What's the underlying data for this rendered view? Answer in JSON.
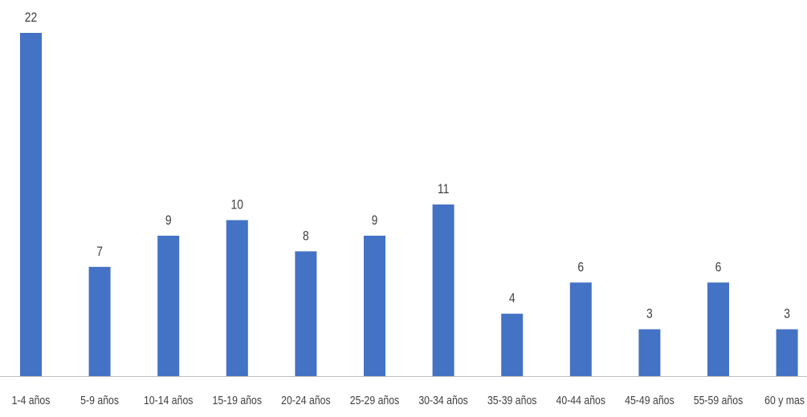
{
  "chart_data": {
    "type": "bar",
    "title": "",
    "xlabel": "",
    "ylabel": "",
    "categories": [
      "1-4 años",
      "5-9 años",
      "10-14 años",
      "15-19 años",
      "20-24 años",
      "25-29 años",
      "30-34 años",
      "35-39 años",
      "40-44 años",
      "45-49 años",
      "55-59 años",
      "60 y mas"
    ],
    "values": [
      22,
      7,
      9,
      10,
      8,
      9,
      11,
      4,
      6,
      3,
      6,
      3
    ],
    "ylim": [
      0,
      22
    ],
    "grid": false,
    "legend": "none",
    "data_labels": true,
    "colors": {
      "bar": "#4472C4",
      "axis": "#BFBFBF",
      "text": "#404040"
    }
  }
}
